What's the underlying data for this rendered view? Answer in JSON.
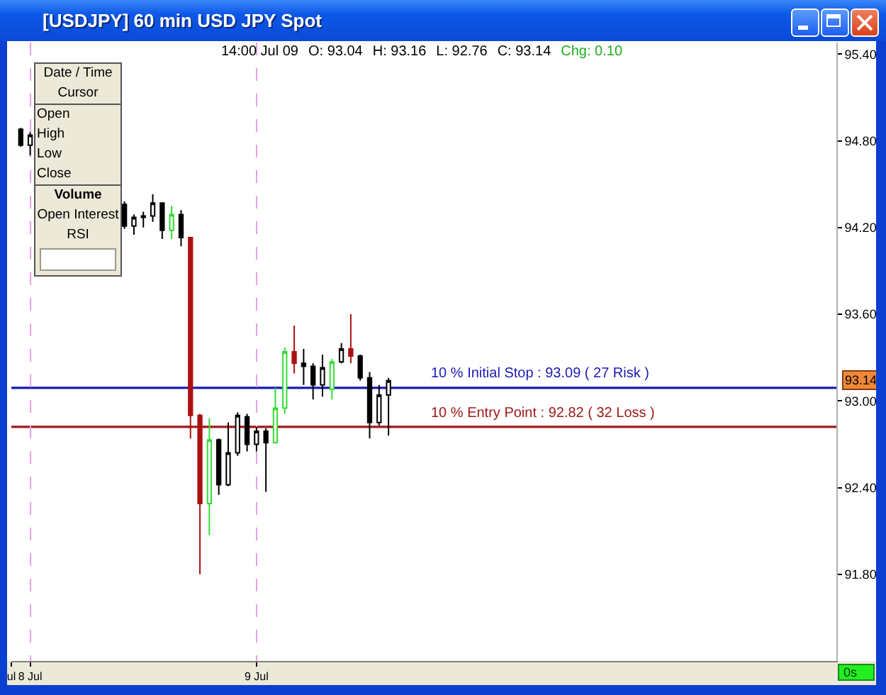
{
  "chart_data": {
    "type": "candlestick",
    "title": "[USDJPY] 60 min USD JPY Spot",
    "x": [
      "--07-07T23:00",
      "--07-08T00:00",
      "--07-08T10:00",
      "--07-08T11:00",
      "--07-08T12:00",
      "--07-08T13:00",
      "--07-08T14:00",
      "--07-08T15:00",
      "--07-08T16:00",
      "--07-08T17:00",
      "--07-08T18:00",
      "--07-08T19:00",
      "--07-08T20:00",
      "--07-08T21:00",
      "--07-08T22:00",
      "--07-08T23:00",
      "--07-09T00:00",
      "--07-09T01:00",
      "--07-09T02:00",
      "--07-09T03:00",
      "--07-09T04:00",
      "--07-09T05:00",
      "--07-09T06:00",
      "--07-09T07:00",
      "--07-09T08:00",
      "--07-09T09:00",
      "--07-09T10:00",
      "--07-09T11:00",
      "--07-09T12:00",
      "--07-09T13:00",
      "--07-09T14:00"
    ],
    "ohlc": [
      [
        94.88,
        94.89,
        94.76,
        94.77
      ],
      [
        94.77,
        94.86,
        94.7,
        94.84
      ],
      [
        94.36,
        94.38,
        94.19,
        94.21
      ],
      [
        94.21,
        94.29,
        94.15,
        94.27
      ],
      [
        94.27,
        94.31,
        94.2,
        94.28
      ],
      [
        94.28,
        94.43,
        94.24,
        94.37
      ],
      [
        94.37,
        94.37,
        94.12,
        94.18
      ],
      [
        94.18,
        94.35,
        94.12,
        94.29
      ],
      [
        94.29,
        94.32,
        94.07,
        94.13
      ],
      [
        94.13,
        94.13,
        92.74,
        92.9
      ],
      [
        92.9,
        92.91,
        91.8,
        92.29
      ],
      [
        92.29,
        92.88,
        92.07,
        92.73
      ],
      [
        92.73,
        92.74,
        92.35,
        92.42
      ],
      [
        92.42,
        92.85,
        92.41,
        92.64
      ],
      [
        92.64,
        92.92,
        92.62,
        92.9
      ],
      [
        92.89,
        92.91,
        92.65,
        92.7
      ],
      [
        92.7,
        92.82,
        92.65,
        92.79
      ],
      [
        92.79,
        92.81,
        92.37,
        92.71
      ],
      [
        92.71,
        93.09,
        92.71,
        92.95
      ],
      [
        92.95,
        93.37,
        92.91,
        93.34
      ],
      [
        93.34,
        93.52,
        93.19,
        93.26
      ],
      [
        93.26,
        93.36,
        93.11,
        93.24
      ],
      [
        93.24,
        93.26,
        93.01,
        93.11
      ],
      [
        93.11,
        93.32,
        93.03,
        93.23
      ],
      [
        93.08,
        93.29,
        93.01,
        93.27
      ],
      [
        93.27,
        93.4,
        93.26,
        93.36
      ],
      [
        93.36,
        93.6,
        93.26,
        93.31
      ],
      [
        93.31,
        93.32,
        93.14,
        93.16
      ],
      [
        93.16,
        93.2,
        92.74,
        92.85
      ],
      [
        92.85,
        93.11,
        92.83,
        93.04
      ],
      [
        93.04,
        93.16,
        92.76,
        93.14
      ]
    ],
    "colors": [
      "#000000",
      "#000000",
      "#000000",
      "#000000",
      "#000000",
      "#000000",
      "#000000",
      "#33dd33",
      "#000000",
      "#aa1111",
      "#aa1111",
      "#33dd33",
      "#000000",
      "#000000",
      "#000000",
      "#000000",
      "#000000",
      "#000000",
      "#33dd33",
      "#33dd33",
      "#aa1111",
      "#000000",
      "#000000",
      "#000000",
      "#33dd33",
      "#000000",
      "#aa1111",
      "#000000",
      "#000000",
      "#000000",
      "#000000"
    ],
    "xlim": [
      "--07-07T22:00",
      "--07-11T13:30"
    ],
    "xticks": [
      {
        "value": "--07-07T22:00",
        "label": "ul"
      },
      {
        "value": "--07-08",
        "label": "8 Jul"
      },
      {
        "value": "--07-09",
        "label": "9 Jul"
      }
    ],
    "ylim": [
      91.2,
      95.48
    ],
    "yticks": [
      {
        "value": 91.8,
        "label": "91.80"
      },
      {
        "value": 92.4,
        "label": "92.40"
      },
      {
        "value": 93,
        "label": "93.00"
      },
      {
        "value": 93.6,
        "label": "93.60"
      },
      {
        "value": 94.2,
        "label": "94.20"
      },
      {
        "value": 94.8,
        "label": "94.80"
      },
      {
        "value": 95.4,
        "label": "95.40"
      }
    ],
    "grid": "x",
    "ref_lines": [
      {
        "axis": "y",
        "value": 93.09,
        "label": "10 % Initial Stop : 93.09 ( 27 Risk )",
        "color": "#1a1ab4"
      },
      {
        "axis": "y",
        "value": 92.82,
        "label": "10 % Entry Point : 92.82 ( 32 Loss )",
        "color": "#a01818"
      }
    ],
    "annotations": [
      "14:00 Jul 09",
      "O: 93.04",
      "H: 93.16",
      "L: 92.76",
      "C: 93.14",
      "Chg: 0.10",
      "Date / Time",
      "Cursor",
      "Open",
      "High",
      "Low",
      "Close",
      "Volume",
      "Open Interest",
      "RSI",
      "93.14",
      "0s"
    ]
  }
}
